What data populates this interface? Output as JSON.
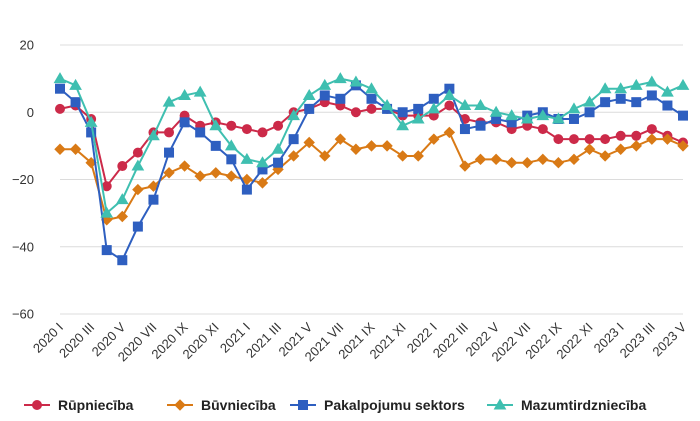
{
  "chart_data": {
    "type": "line",
    "title": "",
    "xlabel": "",
    "ylabel": "",
    "ylim": [
      -60,
      20
    ],
    "yticks": [
      20,
      0,
      -20,
      -40,
      -60
    ],
    "grid": true,
    "legend_position": "bottom",
    "x": [
      "2020 I",
      "2020 II",
      "2020 III",
      "2020 IV",
      "2020 V",
      "2020 VI",
      "2020 VII",
      "2020 VIII",
      "2020 IX",
      "2020 X",
      "2020 XI",
      "2020 XII",
      "2021 I",
      "2021 II",
      "2021 III",
      "2021 IV",
      "2021 V",
      "2021 VI",
      "2021 VII",
      "2021 VIII",
      "2021 IX",
      "2021 X",
      "2021 XI",
      "2021 XII",
      "2022 I",
      "2022 II",
      "2022 III",
      "2022 IV",
      "2022 V",
      "2022 VI",
      "2022 VII",
      "2022 VIII",
      "2022 IX",
      "2022 X",
      "2022 XI",
      "2022 XII",
      "2023 I",
      "2023 II",
      "2023 III",
      "2023 IV",
      "2023 V"
    ],
    "x_tick_labels": [
      "2020 I",
      "2020 III",
      "2020 V",
      "2020 VII",
      "2020 IX",
      "2020 XI",
      "2021 I",
      "2021 III",
      "2021 V",
      "2021 VII",
      "2021 IX",
      "2021 XI",
      "2022 I",
      "2022 III",
      "2022 V",
      "2022 VII",
      "2022 IX",
      "2022 XI",
      "2023 I",
      "2023 III",
      "2023 V"
    ],
    "series": [
      {
        "name": "Rūpniecība",
        "color": "#cc2a49",
        "marker": "circle",
        "values": [
          1,
          2,
          -2,
          -22,
          -16,
          -12,
          -6,
          -6,
          -1,
          -4,
          -3,
          -4,
          -5,
          -6,
          -4,
          0,
          1,
          3,
          2,
          0,
          1,
          1,
          -1,
          -1,
          -1,
          2,
          -2,
          -3,
          -3,
          -5,
          -4,
          -5,
          -8,
          -8,
          -8,
          -8,
          -7,
          -7,
          -5,
          -7,
          -9
        ]
      },
      {
        "name": "Būvniecība",
        "color": "#d97a16",
        "marker": "diamond",
        "values": [
          -11,
          -11,
          -15,
          -32,
          -31,
          -23,
          -22,
          -18,
          -16,
          -19,
          -18,
          -19,
          -20,
          -21,
          -17,
          -13,
          -9,
          -13,
          -8,
          -11,
          -10,
          -10,
          -13,
          -13,
          -8,
          -6,
          -16,
          -14,
          -14,
          -15,
          -15,
          -14,
          -15,
          -14,
          -11,
          -13,
          -11,
          -10,
          -8,
          -8,
          -10
        ]
      },
      {
        "name": "Pakalpojumu sektors",
        "color": "#2e5fc0",
        "marker": "square",
        "values": [
          7,
          3,
          -6,
          -41,
          -44,
          -34,
          -26,
          -12,
          -3,
          -6,
          -10,
          -14,
          -23,
          -17,
          -15,
          -8,
          1,
          5,
          4,
          8,
          4,
          1,
          0,
          1,
          4,
          7,
          -5,
          -4,
          -2,
          -3,
          -1,
          0,
          -2,
          -2,
          0,
          3,
          4,
          3,
          5,
          2,
          -1
        ]
      },
      {
        "name": "Mazumtirdzniecība",
        "color": "#3fbfb0",
        "marker": "triangle",
        "values": [
          10,
          8,
          -3,
          -30,
          -26,
          -16,
          -7,
          3,
          5,
          6,
          -4,
          -10,
          -14,
          -15,
          -11,
          -1,
          5,
          8,
          10,
          9,
          7,
          2,
          -4,
          -2,
          1,
          5,
          2,
          2,
          0,
          -1,
          -2,
          -1,
          -2,
          1,
          3,
          7,
          7,
          8,
          9,
          6,
          8
        ]
      }
    ]
  }
}
